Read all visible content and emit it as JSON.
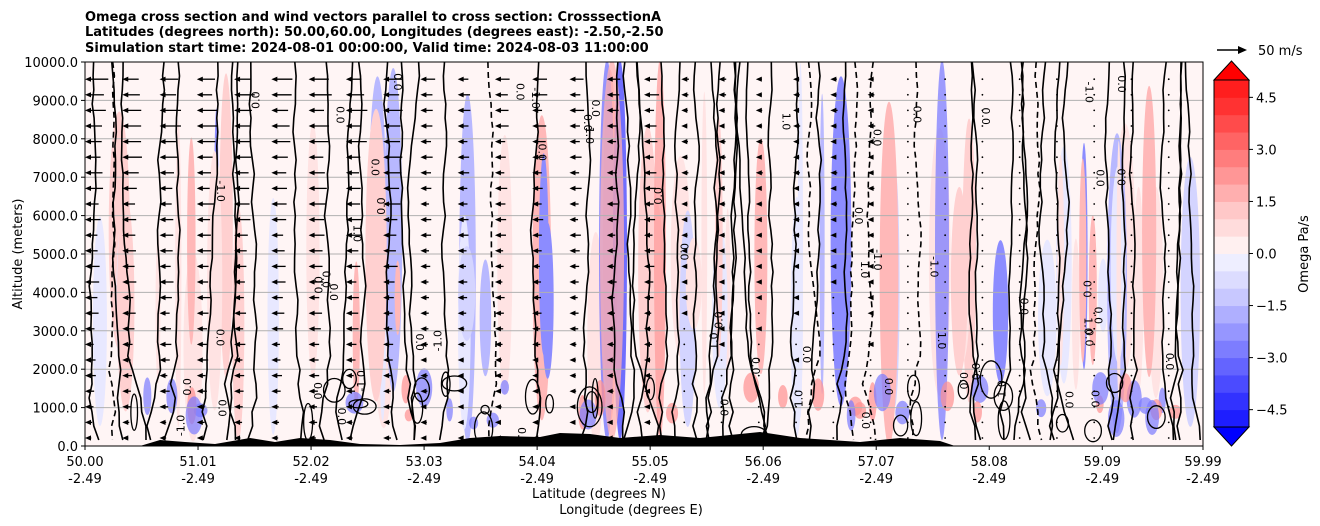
{
  "chart_data": {
    "type": "heatmap",
    "title_lines": [
      "Omega cross section and wind vectors parallel to cross section: CrosssectionA",
      "Latitudes (degrees north): 50.00,60.00, Longitudes (degrees east): -2.50,-2.50",
      "Simulation start time: 2024-08-01 00:00:00, Valid time: 2024-08-03 11:00:00"
    ],
    "ylabel": "Altitude (meters)",
    "xlabel_lines": [
      "Latitude (degrees N)",
      "Longitude (degrees E)"
    ],
    "y_ticks": [
      "0.0",
      "1000.0",
      "2000.0",
      "3000.0",
      "4000.0",
      "5000.0",
      "6000.0",
      "7000.0",
      "8000.0",
      "9000.0",
      "10000.0"
    ],
    "ylim": [
      0,
      10000
    ],
    "x_ticks": [
      {
        "lat": "50.00",
        "lon": "-2.49"
      },
      {
        "lat": "51.01",
        "lon": "-2.49"
      },
      {
        "lat": "52.02",
        "lon": "-2.49"
      },
      {
        "lat": "53.03",
        "lon": "-2.49"
      },
      {
        "lat": "54.04",
        "lon": "-2.49"
      },
      {
        "lat": "55.05",
        "lon": "-2.49"
      },
      {
        "lat": "56.06",
        "lon": "-2.49"
      },
      {
        "lat": "57.07",
        "lon": "-2.49"
      },
      {
        "lat": "58.08",
        "lon": "-2.49"
      },
      {
        "lat": "59.09",
        "lon": "-2.49"
      },
      {
        "lat": "59.99",
        "lon": "-2.49"
      }
    ],
    "colorbar": {
      "label": "Omega Pa/s",
      "ticks": [
        "−4.5",
        "−3.0",
        "−1.5",
        "0.0",
        "1.5",
        "3.0",
        "4.5"
      ],
      "range": [
        -5.0,
        5.0
      ],
      "levels": 20,
      "cmap": "bwr",
      "extend": "both"
    },
    "quiver_key": {
      "label": "50 m/s"
    },
    "contour_labels": [
      "0.0",
      "-1.0",
      "1.0"
    ],
    "grid": "horizontal"
  }
}
